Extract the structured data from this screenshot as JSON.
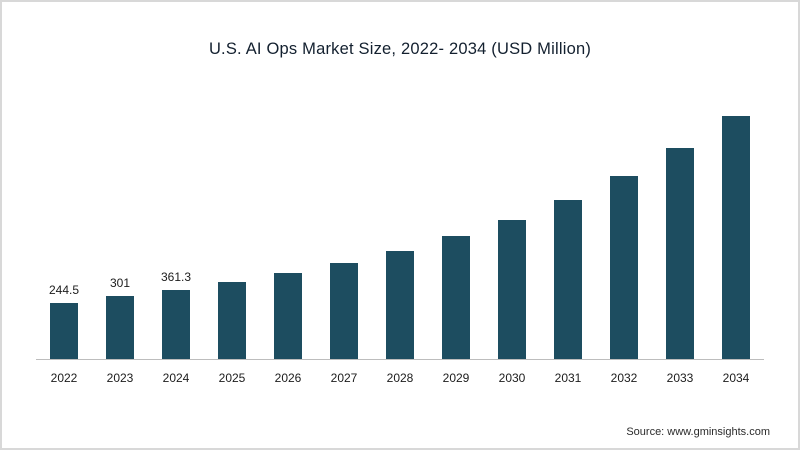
{
  "page": {
    "title": "U.S. AI Ops Market Size, 2022- 2034 (USD Million)",
    "source": "Source: www.gminsights.com"
  },
  "chart_data": {
    "type": "bar",
    "title": "U.S. AI Ops Market Size, 2022- 2034 (USD Million)",
    "xlabel": "",
    "ylabel": "USD Million",
    "grid": false,
    "legend": false,
    "bar_color": "#1d4d60",
    "categories": [
      "2022",
      "2023",
      "2024",
      "2025",
      "2026",
      "2027",
      "2028",
      "2029",
      "2030",
      "2031",
      "2032",
      "2033",
      "2034"
    ],
    "values": [
      244.5,
      301,
      361.3,
      430,
      510,
      600,
      710,
      840,
      990,
      1170,
      1380,
      1630,
      1920
    ],
    "data_labels_shown": [
      "244.5",
      "301",
      "361.3",
      "",
      "",
      "",
      "",
      "",
      "",
      "",
      "",
      "",
      ""
    ],
    "ylim": [
      0,
      2100
    ],
    "bars": [
      {
        "year": "2022",
        "value": 244.5,
        "label": "244.5"
      },
      {
        "year": "2023",
        "value": 301,
        "label": "301"
      },
      {
        "year": "2024",
        "value": 361.3,
        "label": "361.3"
      },
      {
        "year": "2025",
        "value": 430,
        "label": ""
      },
      {
        "year": "2026",
        "value": 510,
        "label": ""
      },
      {
        "year": "2027",
        "value": 600,
        "label": ""
      },
      {
        "year": "2028",
        "value": 710,
        "label": ""
      },
      {
        "year": "2029",
        "value": 840,
        "label": ""
      },
      {
        "year": "2030",
        "value": 990,
        "label": ""
      },
      {
        "year": "2031",
        "value": 1170,
        "label": ""
      },
      {
        "year": "2032",
        "value": 1380,
        "label": ""
      },
      {
        "year": "2033",
        "value": 1630,
        "label": ""
      },
      {
        "year": "2034",
        "value": 1920,
        "label": ""
      }
    ]
  }
}
